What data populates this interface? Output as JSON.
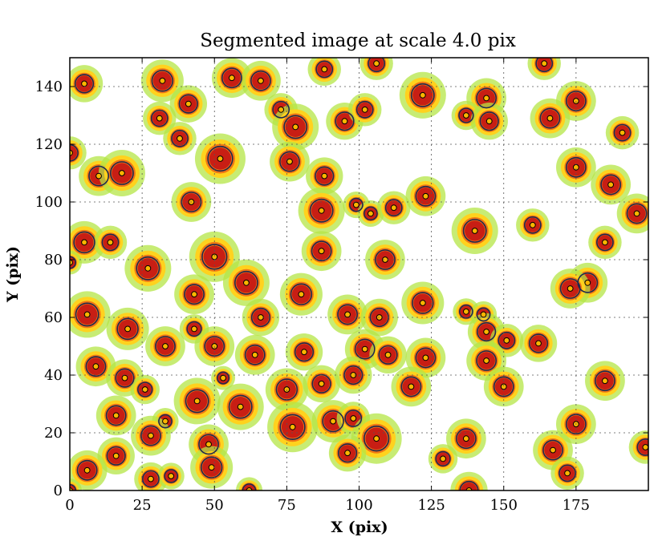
{
  "chart_data": {
    "type": "heatmap",
    "title": "Segmented image at scale 4.0 pix",
    "xlabel": "X (pix)",
    "ylabel": "Y (pix)",
    "xlim": [
      0,
      200
    ],
    "ylim": [
      0,
      150
    ],
    "xticks": [
      0,
      25,
      50,
      75,
      100,
      125,
      150,
      175
    ],
    "yticks": [
      0,
      20,
      40,
      60,
      80,
      100,
      120,
      140
    ],
    "grid": true,
    "colors": {
      "peak": "#c81e14",
      "mid": "#f07814",
      "low": "#ffd21e",
      "faint": "#b4e646",
      "edge": "#1e2850",
      "marker": "#ffb400"
    },
    "segments": [
      {
        "x": 5,
        "y": 141,
        "r": 2.8
      },
      {
        "x": 32,
        "y": 142,
        "r": 3.2
      },
      {
        "x": 56,
        "y": 143,
        "r": 3
      },
      {
        "x": 66,
        "y": 142,
        "r": 3
      },
      {
        "x": 88,
        "y": 146,
        "r": 2.5
      },
      {
        "x": 106,
        "y": 148,
        "r": 2.5
      },
      {
        "x": 122,
        "y": 137,
        "r": 3.5
      },
      {
        "x": 144,
        "y": 136,
        "r": 3
      },
      {
        "x": 164,
        "y": 148,
        "r": 2.5
      },
      {
        "x": 175,
        "y": 135,
        "r": 3
      },
      {
        "x": 41,
        "y": 134,
        "r": 2.8
      },
      {
        "x": 31,
        "y": 129,
        "r": 2.5
      },
      {
        "x": 73,
        "y": 132,
        "r": 2.5
      },
      {
        "x": 78,
        "y": 126,
        "r": 3.5
      },
      {
        "x": 95,
        "y": 128,
        "r": 2.8
      },
      {
        "x": 102,
        "y": 132,
        "r": 2.5
      },
      {
        "x": 137,
        "y": 130,
        "r": 2.2
      },
      {
        "x": 145,
        "y": 128,
        "r": 2.8
      },
      {
        "x": 166,
        "y": 129,
        "r": 3
      },
      {
        "x": 191,
        "y": 124,
        "r": 2.5
      },
      {
        "x": 38,
        "y": 122,
        "r": 2.5
      },
      {
        "x": 0,
        "y": 117,
        "r": 2.5
      },
      {
        "x": 52,
        "y": 115,
        "r": 3.8
      },
      {
        "x": 76,
        "y": 114,
        "r": 3
      },
      {
        "x": 175,
        "y": 112,
        "r": 3
      },
      {
        "x": 10,
        "y": 109,
        "r": 3
      },
      {
        "x": 18,
        "y": 110,
        "r": 3.5
      },
      {
        "x": 88,
        "y": 109,
        "r": 2.8
      },
      {
        "x": 187,
        "y": 106,
        "r": 3
      },
      {
        "x": 123,
        "y": 102,
        "r": 3
      },
      {
        "x": 42,
        "y": 100,
        "r": 3
      },
      {
        "x": 87,
        "y": 97,
        "r": 3.5
      },
      {
        "x": 99,
        "y": 99,
        "r": 2
      },
      {
        "x": 104,
        "y": 96,
        "r": 2
      },
      {
        "x": 112,
        "y": 98,
        "r": 2.5
      },
      {
        "x": 160,
        "y": 92,
        "r": 2.5
      },
      {
        "x": 196,
        "y": 96,
        "r": 3
      },
      {
        "x": 140,
        "y": 90,
        "r": 3.5
      },
      {
        "x": 5,
        "y": 86,
        "r": 3.2
      },
      {
        "x": 14,
        "y": 86,
        "r": 2.5
      },
      {
        "x": 185,
        "y": 86,
        "r": 2.5
      },
      {
        "x": 87,
        "y": 83,
        "r": 3
      },
      {
        "x": 50,
        "y": 81,
        "r": 3.8
      },
      {
        "x": 109,
        "y": 80,
        "r": 3
      },
      {
        "x": 27,
        "y": 77,
        "r": 3.5
      },
      {
        "x": 179,
        "y": 72,
        "r": 3
      },
      {
        "x": 61,
        "y": 72,
        "r": 3.5
      },
      {
        "x": 80,
        "y": 68,
        "r": 3.2
      },
      {
        "x": 43,
        "y": 68,
        "r": 3
      },
      {
        "x": 173,
        "y": 70,
        "r": 3
      },
      {
        "x": 122,
        "y": 65,
        "r": 3.2
      },
      {
        "x": 6,
        "y": 61,
        "r": 3.5
      },
      {
        "x": 96,
        "y": 61,
        "r": 3
      },
      {
        "x": 107,
        "y": 60,
        "r": 2.8
      },
      {
        "x": 66,
        "y": 60,
        "r": 2.8
      },
      {
        "x": 137,
        "y": 62,
        "r": 2
      },
      {
        "x": 143,
        "y": 61,
        "r": 2
      },
      {
        "x": 20,
        "y": 56,
        "r": 3.2
      },
      {
        "x": 43,
        "y": 56,
        "r": 2.2
      },
      {
        "x": 144,
        "y": 55,
        "r": 2.8
      },
      {
        "x": 50,
        "y": 50,
        "r": 3
      },
      {
        "x": 33,
        "y": 50,
        "r": 3
      },
      {
        "x": 151,
        "y": 52,
        "r": 2.5
      },
      {
        "x": 162,
        "y": 51,
        "r": 2.8
      },
      {
        "x": 81,
        "y": 48,
        "r": 2.8
      },
      {
        "x": 102,
        "y": 49,
        "r": 3
      },
      {
        "x": 110,
        "y": 47,
        "r": 2.8
      },
      {
        "x": 64,
        "y": 47,
        "r": 3
      },
      {
        "x": 144,
        "y": 45,
        "r": 3
      },
      {
        "x": 123,
        "y": 46,
        "r": 3
      },
      {
        "x": 9,
        "y": 43,
        "r": 3
      },
      {
        "x": 98,
        "y": 40,
        "r": 2.8
      },
      {
        "x": 19,
        "y": 39,
        "r": 2.8
      },
      {
        "x": 53,
        "y": 39,
        "r": 1.8
      },
      {
        "x": 87,
        "y": 37,
        "r": 2.8
      },
      {
        "x": 118,
        "y": 36,
        "r": 3
      },
      {
        "x": 75,
        "y": 35,
        "r": 3.2
      },
      {
        "x": 26,
        "y": 35,
        "r": 2.2
      },
      {
        "x": 150,
        "y": 36,
        "r": 3
      },
      {
        "x": 185,
        "y": 38,
        "r": 3
      },
      {
        "x": 44,
        "y": 31,
        "r": 3.5
      },
      {
        "x": 59,
        "y": 29,
        "r": 3.5
      },
      {
        "x": 16,
        "y": 26,
        "r": 3
      },
      {
        "x": 33,
        "y": 24,
        "r": 2
      },
      {
        "x": 91,
        "y": 24,
        "r": 3.2
      },
      {
        "x": 98,
        "y": 25,
        "r": 2.5
      },
      {
        "x": 77,
        "y": 22,
        "r": 3.8
      },
      {
        "x": 175,
        "y": 23,
        "r": 3
      },
      {
        "x": 28,
        "y": 19,
        "r": 3
      },
      {
        "x": 106,
        "y": 18,
        "r": 3.8
      },
      {
        "x": 137,
        "y": 18,
        "r": 3
      },
      {
        "x": 48,
        "y": 16,
        "r": 3
      },
      {
        "x": 16,
        "y": 12,
        "r": 2.8
      },
      {
        "x": 96,
        "y": 13,
        "r": 2.8
      },
      {
        "x": 167,
        "y": 14,
        "r": 3
      },
      {
        "x": 129,
        "y": 11,
        "r": 2.2
      },
      {
        "x": 199,
        "y": 15,
        "r": 2.5
      },
      {
        "x": 6,
        "y": 7,
        "r": 3
      },
      {
        "x": 49,
        "y": 8,
        "r": 3.2
      },
      {
        "x": 172,
        "y": 6,
        "r": 2.5
      },
      {
        "x": 28,
        "y": 4,
        "r": 2.5
      },
      {
        "x": 35,
        "y": 5,
        "r": 2
      },
      {
        "x": 62,
        "y": 0,
        "r": 2
      },
      {
        "x": 138,
        "y": 0,
        "r": 2.8
      },
      {
        "x": 0,
        "y": 79,
        "r": 1.8
      },
      {
        "x": 0,
        "y": 0,
        "r": 1.8
      }
    ]
  }
}
